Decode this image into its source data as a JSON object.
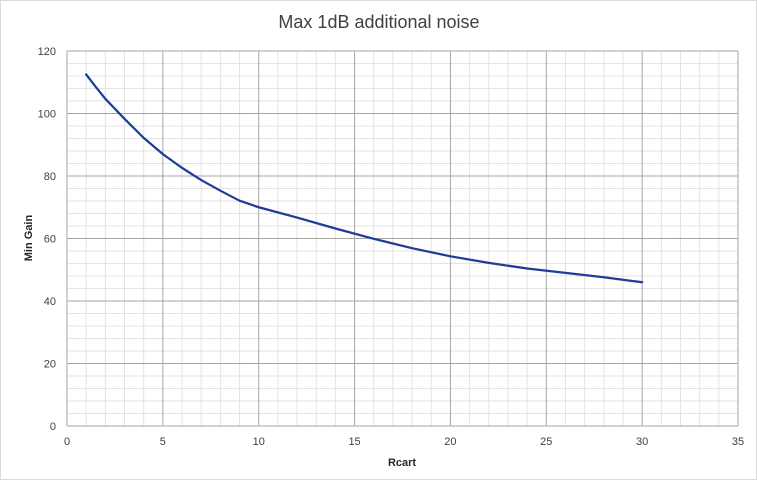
{
  "chart_data": {
    "type": "line",
    "title": "Max 1dB additional noise",
    "xlabel": "Rcart",
    "ylabel": "Min Gain",
    "xlim": [
      0,
      35
    ],
    "ylim": [
      0,
      120
    ],
    "x_major_ticks": [
      0,
      5,
      10,
      15,
      20,
      25,
      30,
      35
    ],
    "y_major_ticks": [
      0,
      20,
      40,
      60,
      80,
      100,
      120
    ],
    "x_minor_step": 1,
    "y_minor_step": 4,
    "grid": "major and minor",
    "legend": "none",
    "series": [
      {
        "color": "#1f3c99",
        "x": [
          1,
          1.5,
          2,
          3,
          4,
          5,
          6,
          7,
          8,
          9,
          10,
          12,
          14,
          16,
          18,
          20,
          22,
          24,
          26,
          28,
          30
        ],
        "y": [
          112.5,
          108.5,
          104.7,
          98.3,
          92.2,
          87.0,
          82.6,
          78.7,
          75.3,
          72.1,
          70.0,
          66.7,
          63.2,
          59.9,
          56.9,
          54.3,
          52.2,
          50.4,
          49.0,
          47.6,
          46.0
        ]
      }
    ]
  }
}
